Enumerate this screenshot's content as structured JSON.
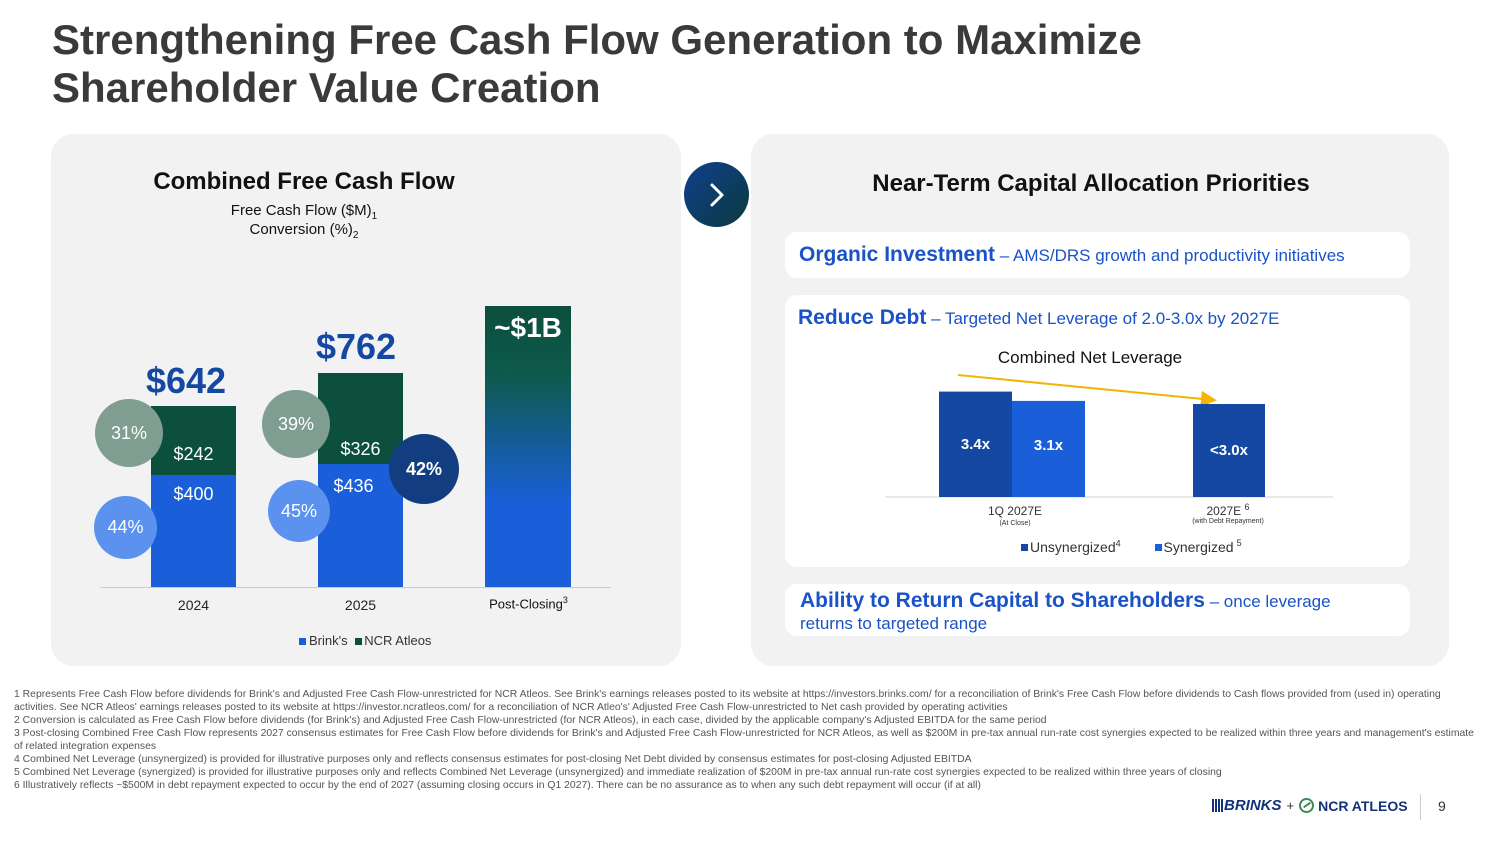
{
  "title": "Strengthening Free Cash Flow Generation to Maximize Shareholder Value Creation",
  "colors": {
    "brinks": "#1a5fd9",
    "ncr": "#0b4f3c",
    "dark_blue": "#1548a3"
  },
  "left": {
    "heading": "Combined Free Cash Flow",
    "sub1": "Free Cash Flow ($M)",
    "sub1_sup": "1",
    "sub2": "Conversion (%)",
    "sub2_sup": "2"
  },
  "chart_data": {
    "type": "bar",
    "stacked": true,
    "categories": [
      "2024",
      "2025",
      "Post-Closing"
    ],
    "category_footnote": {
      "Post-Closing": "3"
    },
    "series": [
      {
        "name": "Brink's",
        "values": [
          400,
          436,
          1000
        ],
        "labels": [
          "$400",
          "$436",
          ""
        ]
      },
      {
        "name": "NCR Atleos",
        "values": [
          242,
          326,
          0
        ],
        "labels": [
          "$242",
          "$326",
          ""
        ]
      }
    ],
    "totals": [
      "$642",
      "$762",
      "~$1B"
    ],
    "conversion": {
      "2024": {
        "ncr": "31%",
        "brinks": "44%"
      },
      "2025": {
        "ncr": "39%",
        "brinks": "45%",
        "combined": "42%"
      }
    },
    "legend": [
      "Brink's",
      "NCR Atleos"
    ]
  },
  "arrow_icon": "chevron-right-icon",
  "right": {
    "heading": "Near-Term Capital Allocation Priorities",
    "organic_title": "Organic Investment",
    "organic_text": " – AMS/DRS growth and productivity initiatives",
    "debt_title": "Reduce Debt",
    "debt_text": " – Targeted Net Leverage of 2.0-3.0x by 2027E",
    "leverage_chart": {
      "title": "Combined Net Leverage",
      "type": "bar",
      "categories": [
        "1Q 2027E",
        "2027E"
      ],
      "category_notes": [
        "(At Close)",
        "(with Debt Repayment)"
      ],
      "category_sup": [
        "",
        "6"
      ],
      "series": [
        {
          "name": "Unsynergized",
          "sup": "4",
          "values": [
            3.4,
            3.0
          ],
          "labels": [
            "3.4x",
            "<3.0x"
          ]
        },
        {
          "name": "Synergized",
          "sup": "5",
          "values": [
            3.1,
            null
          ],
          "labels": [
            "3.1x",
            ""
          ]
        }
      ]
    },
    "return_title": "Ability to Return Capital to Shareholders",
    "return_text": " – once leverage",
    "return_text2": "returns to targeted range"
  },
  "footnotes": [
    "1 Represents Free Cash Flow before dividends for Brink's and Adjusted Free Cash Flow-unrestricted for NCR Atleos. See Brink's earnings releases posted to its website at https://investors.brinks.com/ for a reconciliation of Brink's Free Cash Flow before dividends to Cash flows provided from (used in) operating activities. See NCR Atleos' earnings releases posted to its website at https://investor.ncratleos.com/ for a reconciliation of NCR Atleo's' Adjusted Free Cash Flow-unrestricted to Net cash provided by operating activities",
    "2 Conversion is calculated as Free Cash Flow before dividends (for Brink's) and Adjusted Free Cash Flow-unrestricted (for NCR Atleos), in each case, divided by the applicable company's Adjusted EBITDA for the same period",
    "3 Post-closing Combined Free Cash Flow represents 2027 consensus estimates for Free Cash Flow before dividends for Brink's and Adjusted Free Cash Flow-unrestricted for NCR Atleos, as well as $200M in pre-tax annual run-rate cost synergies expected to be realized within three years and management's estimate of related integration expenses",
    "4 Combined Net Leverage (unsynergized) is provided for illustrative purposes only and reflects consensus estimates for post-closing Net Debt divided by consensus estimates for post-closing Adjusted EBITDA",
    "5 Combined Net Leverage (synergized) is provided for illustrative purposes only and reflects Combined Net Leverage (unsynergized) and immediate realization of $200M in pre-tax annual run-rate cost synergies expected to be realized within three years of closing",
    "6 Illustratively reflects ~$500M in debt repayment expected to occur by the end of 2027 (assuming closing occurs in Q1 2027). There can be no assurance as to when any such debt repayment will occur (if at all)"
  ],
  "logo": {
    "brinks": "BRINKS",
    "plus": "+",
    "ncr": "NCR ATLEOS"
  },
  "page_number": "9"
}
